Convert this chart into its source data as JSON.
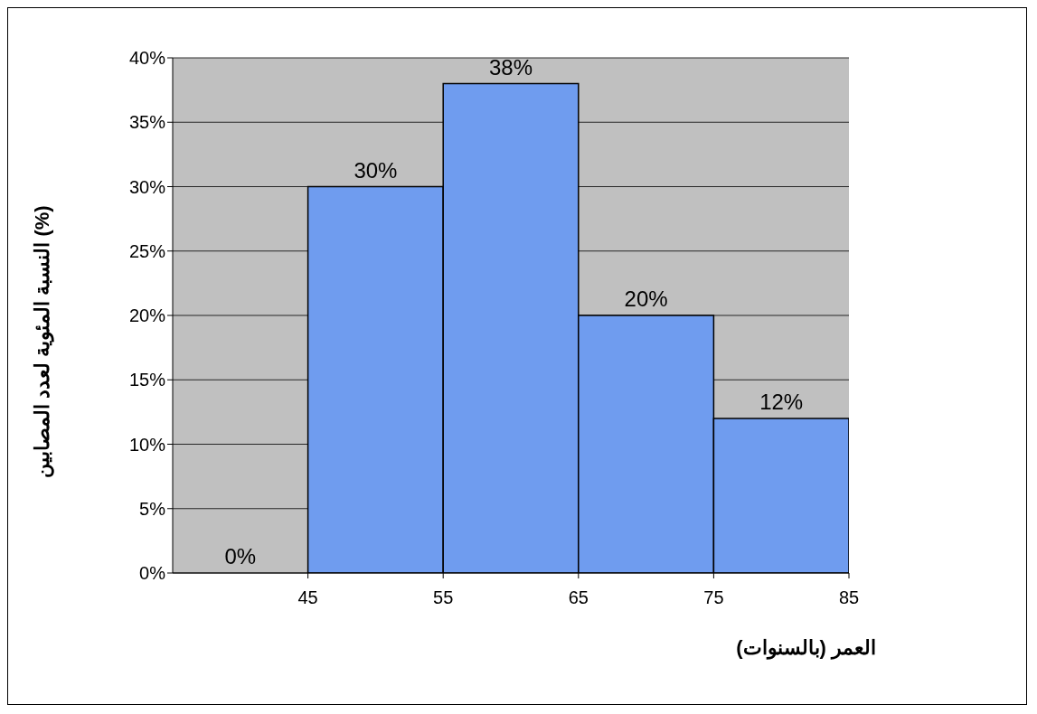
{
  "chart_data": {
    "type": "histogram",
    "bins": [
      35,
      45,
      55,
      65,
      75,
      85
    ],
    "values": [
      0,
      30,
      38,
      20,
      12
    ],
    "value_labels": [
      "0%",
      "30%",
      "38%",
      "20%",
      "12%"
    ],
    "color": "#6f9cef",
    "xlim": [
      35,
      85
    ],
    "xticks": [
      45,
      55,
      65,
      75,
      85
    ],
    "ylim": [
      0,
      40
    ],
    "yticks": [
      {
        "value": 0,
        "label": "0%"
      },
      {
        "value": 5,
        "label": "5%"
      },
      {
        "value": 10,
        "label": "10%"
      },
      {
        "value": 15,
        "label": "15%"
      },
      {
        "value": 20,
        "label": "20%"
      },
      {
        "value": 25,
        "label": "25%"
      },
      {
        "value": 30,
        "label": "30%"
      },
      {
        "value": 35,
        "label": "35%"
      },
      {
        "value": 40,
        "label": "40%"
      }
    ],
    "xlabel": "العمر (بالسنوات)",
    "ylabel": "النسبة المئوية لعدد المصابين (%)",
    "grid": "y",
    "legend": false
  }
}
